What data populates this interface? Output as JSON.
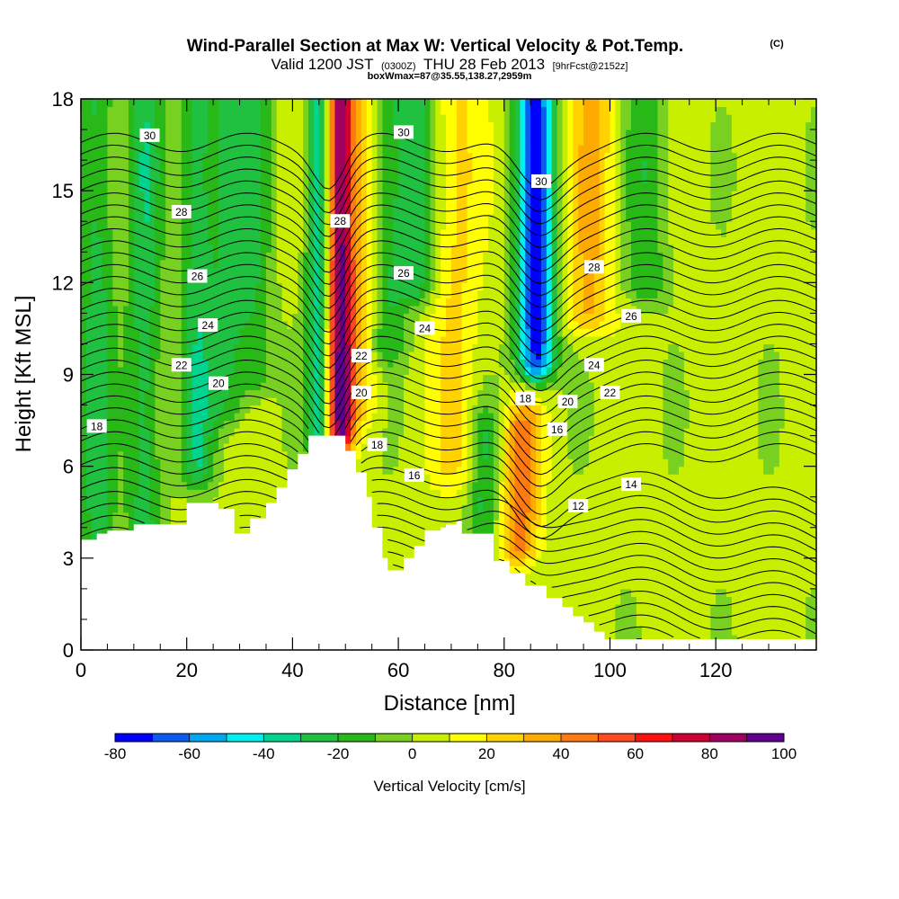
{
  "header": {
    "title": "Wind-Parallel Section at Max W: Vertical Velocity & Pot.Temp.",
    "copyright": "(C)",
    "valid_prefix": "Valid 1200 JST",
    "valid_utc": "(0300Z)",
    "valid_date": "THU 28 Feb 2013",
    "forecast_info": "[9hrFcst@2152z]",
    "box_info": "boxWmax=87@35.55,138.27,2959m"
  },
  "chart_data": {
    "type": "heatmap",
    "xlabel": "Distance [nm]",
    "ylabel": "Height [Kft MSL]",
    "xlim": [
      0,
      139
    ],
    "ylim": [
      0,
      18
    ],
    "x_ticks": [
      0,
      20,
      40,
      60,
      80,
      100,
      120
    ],
    "y_ticks": [
      0,
      3,
      6,
      9,
      12,
      15,
      18
    ],
    "colorbar": {
      "label": "Vertical Velocity [cm/s]",
      "min": -80,
      "max": 100,
      "step": 10,
      "ticks": [
        -80,
        -60,
        -40,
        -20,
        0,
        20,
        40,
        60,
        80,
        100
      ],
      "colors": [
        "#0000ff",
        "#0a5cf0",
        "#00a8f0",
        "#00f0f0",
        "#00d48e",
        "#20c040",
        "#28b818",
        "#78d020",
        "#c8ee00",
        "#ffff00",
        "#ffd200",
        "#ffaa00",
        "#ff7a10",
        "#ff4a20",
        "#ff1010",
        "#d00030",
        "#a00060",
        "#600090"
      ]
    },
    "velocity_features": [
      {
        "x": 3,
        "zmin": 3.7,
        "zmax": 18,
        "w": -28,
        "width": 2.5
      },
      {
        "x": 12,
        "zmin": 3.8,
        "zmax": 18,
        "w": -30,
        "width": 2.5
      },
      {
        "x": 22,
        "zmin": 6,
        "zmax": 18,
        "w": -30,
        "width": 2.5
      },
      {
        "x": 28,
        "zmin": 8,
        "zmax": 18,
        "w": -22,
        "width": 2.5
      },
      {
        "x": 33,
        "zmin": 9,
        "zmax": 18,
        "w": -22,
        "width": 2.5
      },
      {
        "x": 45,
        "zmin": 7,
        "zmax": 18,
        "w": -42,
        "width": 1.8
      },
      {
        "x": 49,
        "zmin": 7.2,
        "zmax": 18,
        "w": 88,
        "width": 1.8
      },
      {
        "x": 53,
        "zmin": 8,
        "zmax": 18,
        "w": 18,
        "width": 2.5
      },
      {
        "x": 58,
        "zmin": 10,
        "zmax": 18,
        "w": -22,
        "width": 2.5
      },
      {
        "x": 63,
        "zmin": 12,
        "zmax": 18,
        "w": -30,
        "width": 2.5
      },
      {
        "x": 71,
        "zmin": 6,
        "zmax": 18,
        "w": 18,
        "width": 3
      },
      {
        "x": 76,
        "zmin": 4,
        "zmax": 7,
        "w": -24,
        "width": 2
      },
      {
        "x": 86,
        "zmin": 9.5,
        "zmax": 17.5,
        "w": -80,
        "width": 2.5
      },
      {
        "x": 83,
        "zmin": 3.5,
        "zmax": 7,
        "w": 40,
        "width": 2.5
      },
      {
        "x": 96,
        "zmin": 11,
        "zmax": 18,
        "w": 28,
        "width": 3
      },
      {
        "x": 107,
        "zmin": 12,
        "zmax": 18,
        "w": -22,
        "width": 3
      }
    ],
    "terrain": {
      "x": [
        0,
        3,
        3,
        5,
        5,
        10,
        10,
        20,
        20,
        26,
        26,
        29,
        29,
        32,
        32,
        35,
        35,
        37,
        37,
        39,
        39,
        41,
        41,
        43,
        43,
        50,
        50,
        52,
        52,
        54,
        54,
        55,
        55,
        57,
        57,
        58,
        58,
        61,
        61,
        63,
        63,
        65,
        65,
        68,
        68,
        69,
        69,
        71,
        71,
        72,
        72,
        78,
        78,
        81,
        81,
        84,
        84,
        88,
        88,
        91,
        91,
        93,
        93,
        95,
        95,
        97,
        97,
        99,
        99,
        139
      ],
      "h": [
        3.6,
        3.6,
        3.8,
        3.8,
        3.9,
        3.9,
        4.1,
        4.1,
        4.8,
        4.8,
        4.6,
        4.6,
        3.8,
        3.8,
        4.3,
        4.3,
        4.8,
        4.8,
        5.3,
        5.3,
        5.9,
        5.9,
        6.4,
        6.4,
        7.0,
        7.0,
        6.5,
        6.5,
        5.8,
        5.8,
        5.0,
        5.0,
        4.0,
        4.0,
        3.0,
        3.0,
        2.6,
        2.6,
        3.0,
        3.0,
        3.4,
        3.4,
        3.9,
        3.9,
        4.0,
        4.0,
        4.1,
        4.1,
        4.2,
        4.2,
        3.8,
        3.8,
        2.9,
        2.9,
        2.5,
        2.5,
        2.1,
        2.1,
        1.7,
        1.7,
        1.4,
        1.4,
        1.1,
        1.1,
        0.9,
        0.9,
        0.6,
        0.6,
        0.35,
        0.35
      ]
    },
    "contour_labels": [
      {
        "text": "30",
        "x": 13,
        "y": 16.8
      },
      {
        "text": "30",
        "x": 61,
        "y": 16.9
      },
      {
        "text": "30",
        "x": 87,
        "y": 15.3
      },
      {
        "text": "28",
        "x": 19,
        "y": 14.3
      },
      {
        "text": "28",
        "x": 49,
        "y": 14.0
      },
      {
        "text": "28",
        "x": 97,
        "y": 12.5
      },
      {
        "text": "26",
        "x": 22,
        "y": 12.2
      },
      {
        "text": "26",
        "x": 61,
        "y": 12.3
      },
      {
        "text": "26",
        "x": 104,
        "y": 10.9
      },
      {
        "text": "24",
        "x": 24,
        "y": 10.6
      },
      {
        "text": "24",
        "x": 65,
        "y": 10.5
      },
      {
        "text": "24",
        "x": 97,
        "y": 9.3
      },
      {
        "text": "22",
        "x": 19,
        "y": 9.3
      },
      {
        "text": "22",
        "x": 53,
        "y": 9.6
      },
      {
        "text": "22",
        "x": 100,
        "y": 8.4
      },
      {
        "text": "20",
        "x": 26,
        "y": 8.7
      },
      {
        "text": "20",
        "x": 53,
        "y": 8.4
      },
      {
        "text": "20",
        "x": 92,
        "y": 8.1
      },
      {
        "text": "18",
        "x": 3,
        "y": 7.3
      },
      {
        "text": "18",
        "x": 56,
        "y": 6.7
      },
      {
        "text": "18",
        "x": 84,
        "y": 8.2
      },
      {
        "text": "16",
        "x": 63,
        "y": 5.7
      },
      {
        "text": "16",
        "x": 90,
        "y": 7.2
      },
      {
        "text": "14",
        "x": 104,
        "y": 5.4
      },
      {
        "text": "12",
        "x": 94,
        "y": 4.7
      }
    ]
  }
}
